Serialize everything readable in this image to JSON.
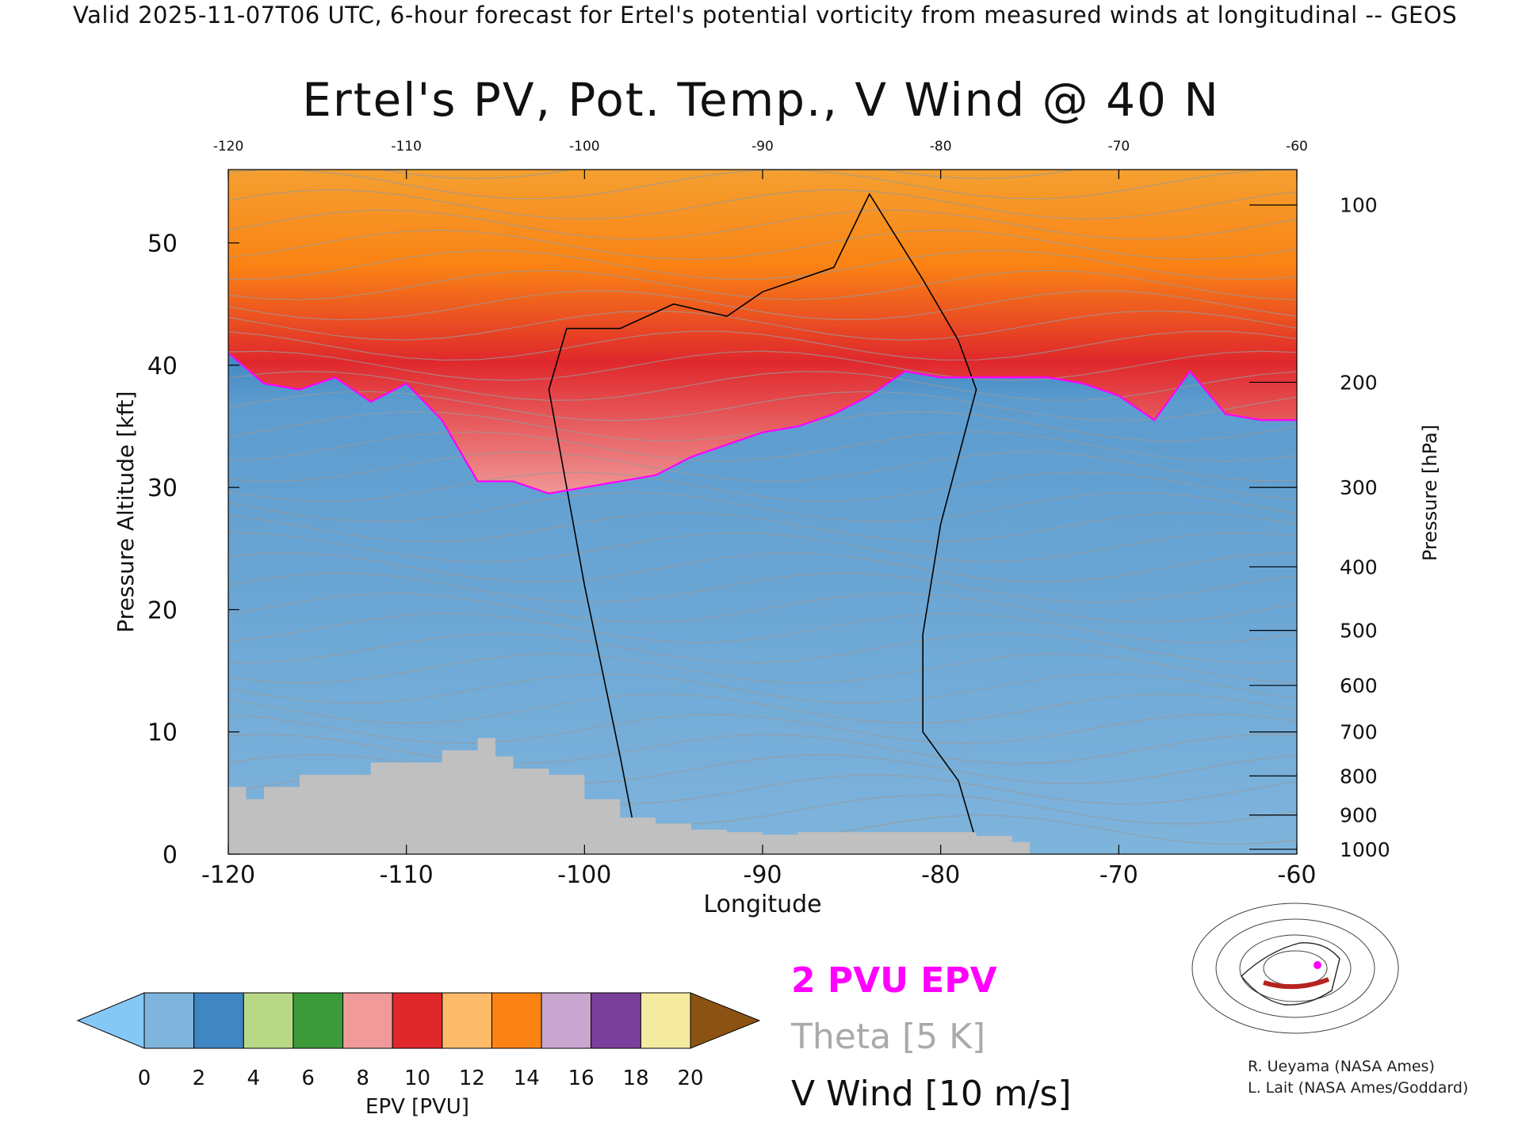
{
  "header": {
    "text": "Valid 2025-11-07T06 UTC, 6-hour forecast for Ertel's potential vorticity from measured winds at longitudinal -- GEOS"
  },
  "chart_data": {
    "type": "heatmap",
    "title": "Ertel's PV, Pot. Temp., V Wind @ 40 N",
    "xlabel": "Longitude",
    "ylabel_left": "Pressure Altitude [kft]",
    "ylabel_right": "Pressure [hPa]",
    "xlim": [
      -120,
      -60
    ],
    "ylim": [
      0,
      56
    ],
    "x_ticks": [
      "-120",
      "-110",
      "-100",
      "-90",
      "-80",
      "-70",
      "-60"
    ],
    "x_ticks_values": [
      -120,
      -110,
      -100,
      -90,
      -80,
      -70,
      -60
    ],
    "y_ticks_left": [
      "0",
      "10",
      "20",
      "30",
      "40",
      "50"
    ],
    "y_ticks_left_values": [
      0,
      10,
      20,
      30,
      40,
      50
    ],
    "y_ticks_right": [
      "100",
      "200",
      "300",
      "400",
      "500",
      "600",
      "700",
      "800",
      "900",
      "1000"
    ],
    "y_ticks_right_kft": [
      53.1,
      38.6,
      30.0,
      23.5,
      18.3,
      13.8,
      10.0,
      6.4,
      3.2,
      0.4
    ],
    "tropopause_2pvu_kft": [
      [
        -120,
        41.0
      ],
      [
        -118,
        38.5
      ],
      [
        -116,
        38.0
      ],
      [
        -114,
        39.0
      ],
      [
        -112,
        37.0
      ],
      [
        -110,
        38.5
      ],
      [
        -108,
        35.5
      ],
      [
        -106,
        30.5
      ],
      [
        -104,
        30.5
      ],
      [
        -102,
        29.5
      ],
      [
        -100,
        30.0
      ],
      [
        -98,
        30.5
      ],
      [
        -96,
        31.0
      ],
      [
        -94,
        32.5
      ],
      [
        -92,
        33.5
      ],
      [
        -90,
        34.5
      ],
      [
        -88,
        35.0
      ],
      [
        -86,
        36.0
      ],
      [
        -84,
        37.5
      ],
      [
        -82,
        39.5
      ],
      [
        -80,
        39.0
      ],
      [
        -78,
        39.0
      ],
      [
        -76,
        39.0
      ],
      [
        -74,
        39.0
      ],
      [
        -72,
        38.5
      ],
      [
        -70,
        37.5
      ],
      [
        -68,
        35.5
      ],
      [
        -66,
        39.5
      ],
      [
        -64,
        36.0
      ],
      [
        -62,
        35.5
      ],
      [
        -60,
        35.5
      ]
    ],
    "v_wind_zero_contour_kft": [
      [
        -97,
        0.5
      ],
      [
        -98,
        8
      ],
      [
        -99,
        15
      ],
      [
        -100,
        22
      ],
      [
        -101,
        30
      ],
      [
        -102,
        38
      ],
      [
        -101,
        43
      ],
      [
        -98,
        43
      ],
      [
        -95,
        45
      ],
      [
        -92,
        44
      ],
      [
        -90,
        46
      ],
      [
        -88,
        47
      ],
      [
        -86,
        48
      ],
      [
        -84,
        54
      ],
      [
        -81,
        47
      ],
      [
        -79,
        42
      ],
      [
        -78,
        38
      ],
      [
        -80,
        27
      ],
      [
        -81,
        18
      ],
      [
        -81,
        10
      ],
      [
        -79,
        6
      ],
      [
        -78,
        1
      ]
    ],
    "terrain_kft": [
      [
        -120,
        5.5
      ],
      [
        -119,
        4.5
      ],
      [
        -118,
        5.5
      ],
      [
        -116,
        6.5
      ],
      [
        -114,
        6.5
      ],
      [
        -112,
        7.5
      ],
      [
        -110,
        7.5
      ],
      [
        -108,
        8.5
      ],
      [
        -106,
        9.5
      ],
      [
        -105,
        8.0
      ],
      [
        -104,
        7.0
      ],
      [
        -102,
        6.5
      ],
      [
        -100,
        4.5
      ],
      [
        -98,
        3.0
      ],
      [
        -96,
        2.5
      ],
      [
        -94,
        2.0
      ],
      [
        -92,
        1.8
      ],
      [
        -90,
        1.6
      ],
      [
        -88,
        1.8
      ],
      [
        -86,
        1.8
      ],
      [
        -84,
        1.8
      ],
      [
        -82,
        1.8
      ],
      [
        -80,
        1.8
      ],
      [
        -78,
        1.5
      ],
      [
        -76,
        1.0
      ],
      [
        -75,
        0
      ]
    ],
    "colorbar": {
      "label": "EPV [PVU]",
      "tick_labels": [
        "0",
        "2",
        "4",
        "6",
        "8",
        "10",
        "12",
        "14",
        "16",
        "18",
        "20"
      ],
      "colors": [
        "#7fb4dc",
        "#3f86c3",
        "#b7d986",
        "#3d9a3a",
        "#f09a9a",
        "#e0282c",
        "#fdba68",
        "#fa8314",
        "#c9a6cf",
        "#7a3f9b",
        "#f4eba0"
      ],
      "under_color": "#86c8f5",
      "over_color": "#8b5213"
    },
    "legend": [
      {
        "label": "2 PVU EPV",
        "color": "#ff00ff"
      },
      {
        "label": "Theta [5 K]",
        "color": "#aaaaaa"
      },
      {
        "label": "V Wind [10 m/s]",
        "color": "#111111"
      }
    ],
    "grid": false
  },
  "credits": {
    "line1": "R. Ueyama (NASA Ames)",
    "line2": "L. Lait (NASA Ames/Goddard)"
  }
}
